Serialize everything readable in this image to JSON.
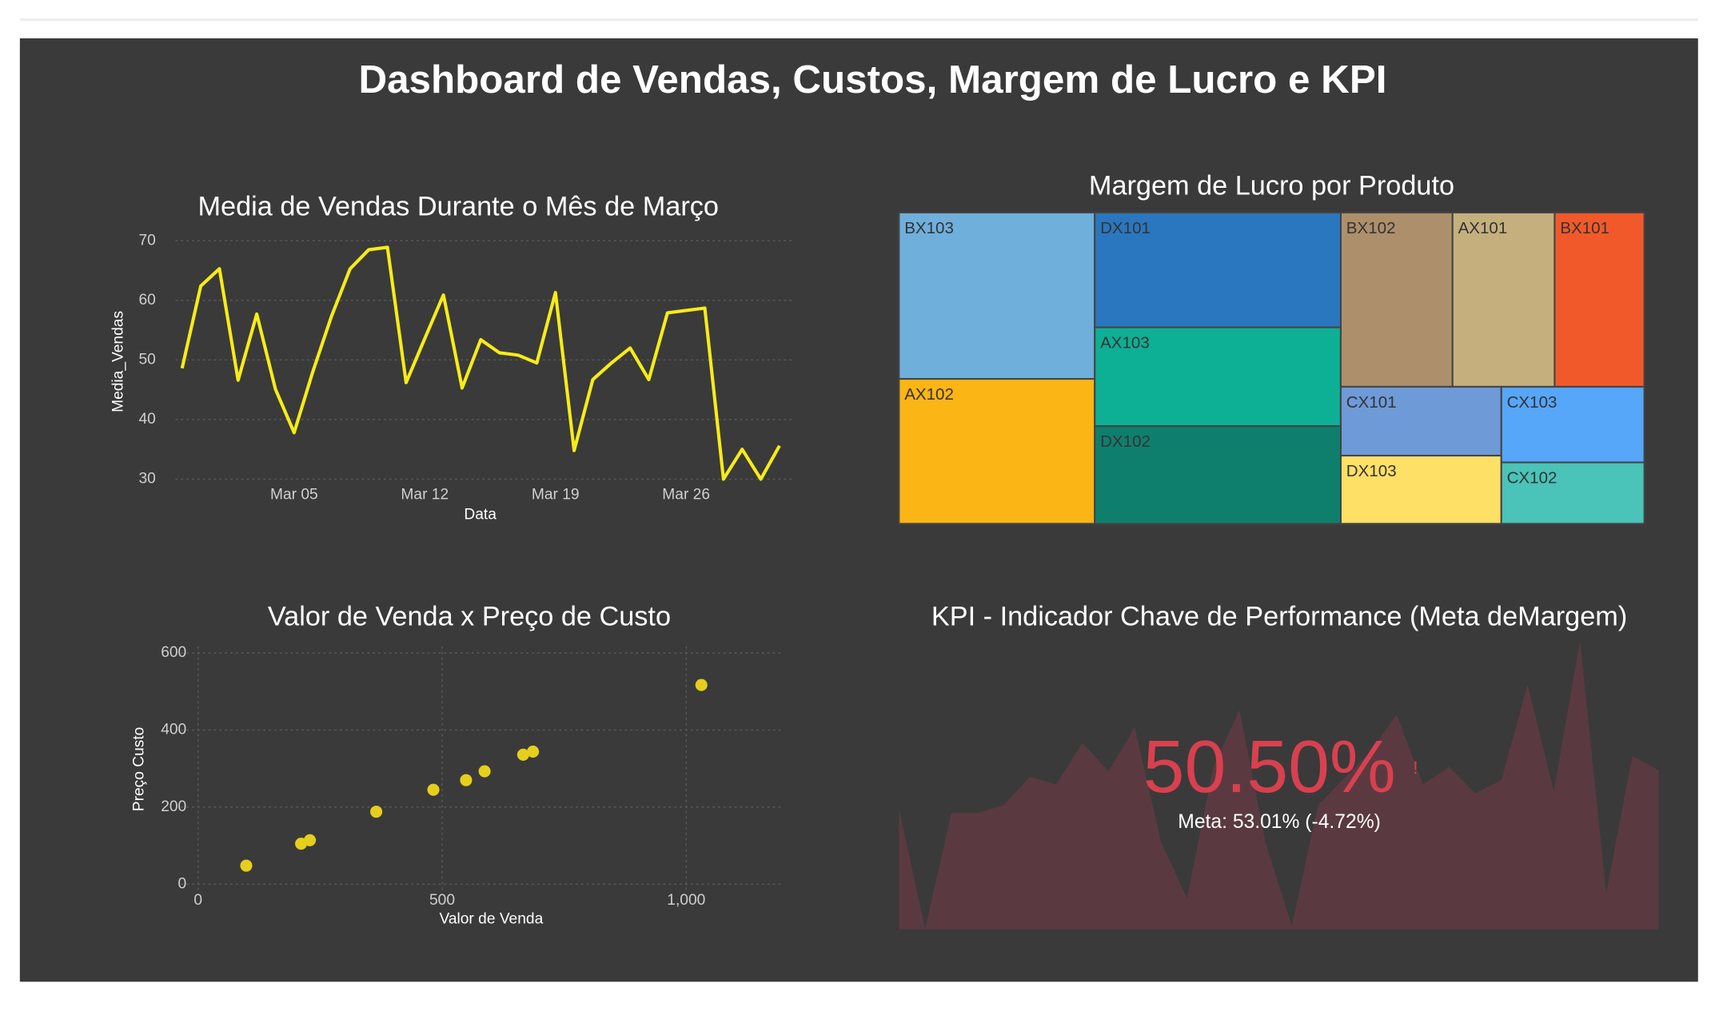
{
  "title": "Dashboard de Vendas, Custos, Margem de Lucro e KPI",
  "chart_data": [
    {
      "type": "line",
      "title": "Media de Vendas Durante o Mês de Março",
      "x": [
        "Feb 27",
        "Feb 28",
        "Mar 01",
        "Mar 02",
        "Mar 03",
        "Mar 04",
        "Mar 05",
        "Mar 06",
        "Mar 07",
        "Mar 08",
        "Mar 09",
        "Mar 10",
        "Mar 11",
        "Mar 12",
        "Mar 13",
        "Mar 14",
        "Mar 15",
        "Mar 16",
        "Mar 17",
        "Mar 18",
        "Mar 19",
        "Mar 20",
        "Mar 21",
        "Mar 22",
        "Mar 23",
        "Mar 24",
        "Mar 25",
        "Mar 26",
        "Mar 27",
        "Mar 28",
        "Mar 29",
        "Mar 30",
        "Mar 31"
      ],
      "values": [
        48.6,
        62.4,
        65.3,
        46.6,
        57.7,
        45.1,
        37.8,
        48,
        57.3,
        65.3,
        68.5,
        68.9,
        46.2,
        53.6,
        60.9,
        45.3,
        53.4,
        51.2,
        50.8,
        49.5,
        61.3,
        34.8,
        46.7,
        49.5,
        52,
        46.7,
        57.9,
        58.3,
        58.7,
        30,
        35,
        30,
        35.6
      ],
      "color": "#f7ec16",
      "xlabel": "Data",
      "ylabel": "Media_Vendas",
      "ylim": [
        29.5,
        70.5
      ],
      "yticks": [
        30,
        40,
        50,
        60,
        70
      ],
      "xticks": [
        "Mar 05",
        "Mar 12",
        "Mar 19",
        "Mar 26"
      ],
      "grid": true
    },
    {
      "type": "treemap",
      "title": "Margem de Lucro por Produto",
      "labels": [
        "BX103",
        "AX102",
        "DX101",
        "AX103",
        "DX102",
        "BX102",
        "AX101",
        "BX101",
        "CX101",
        "DX103",
        "CX103",
        "CX102"
      ],
      "values": [
        27.1,
        23.6,
        23.5,
        20.2,
        20,
        16.2,
        14.8,
        13,
        9.2,
        9.1,
        9,
        7.3
      ],
      "colors": [
        "#6fafdc",
        "#fbb515",
        "#2a77bf",
        "#0daf95",
        "#0f7f6d",
        "#ad8f6b",
        "#c5b07d",
        "#f2592a",
        "#6e9ad8",
        "#ffe066",
        "#56a6fa",
        "#4ac3b9"
      ]
    },
    {
      "type": "scatter",
      "title": "Valor de Venda x Preço de Custo",
      "x": [
        98.7,
        211,
        229,
        365,
        482,
        549,
        587,
        666,
        686,
        1031
      ],
      "values": [
        48,
        105,
        114,
        188,
        245,
        270,
        293,
        336,
        344,
        517
      ],
      "color": "#e6cf1c",
      "xlabel": "Valor de Venda",
      "ylabel": "Preço Custo",
      "xlim": [
        -35,
        1200
      ],
      "ylim": [
        -23,
        617
      ],
      "xticks": [
        0,
        500,
        {
          "value": 1000,
          "label": "1,000"
        }
      ],
      "yticks": [
        0,
        200,
        400,
        600
      ],
      "grid": true
    },
    {
      "type": "indicator",
      "title": "KPI - Indicador Chave de Performance (Meta deMargem)",
      "values": [
        50.5
      ],
      "value_labels": [
        "50.50%"
      ],
      "flag": "!",
      "reference": 53.01,
      "delta": -4.72,
      "reference_label": "Meta: 53.01% (-4.72%)",
      "color": "#d9404f",
      "area": {
        "values": [
          41.8,
          0,
          40.3,
          40.3,
          43,
          52.9,
          50.2,
          64.6,
          54.8,
          70,
          30.4,
          10.6,
          56.3,
          76,
          29.7,
          1.1,
          43,
          52.5,
          61.6,
          74.5,
          50.2,
          56.3,
          47.1,
          51.7,
          84.8,
          47.9,
          100,
          12.5,
          60.1,
          55.1
        ],
        "color": "#5a3a40"
      },
      "ylim": [
        0,
        100
      ]
    }
  ]
}
